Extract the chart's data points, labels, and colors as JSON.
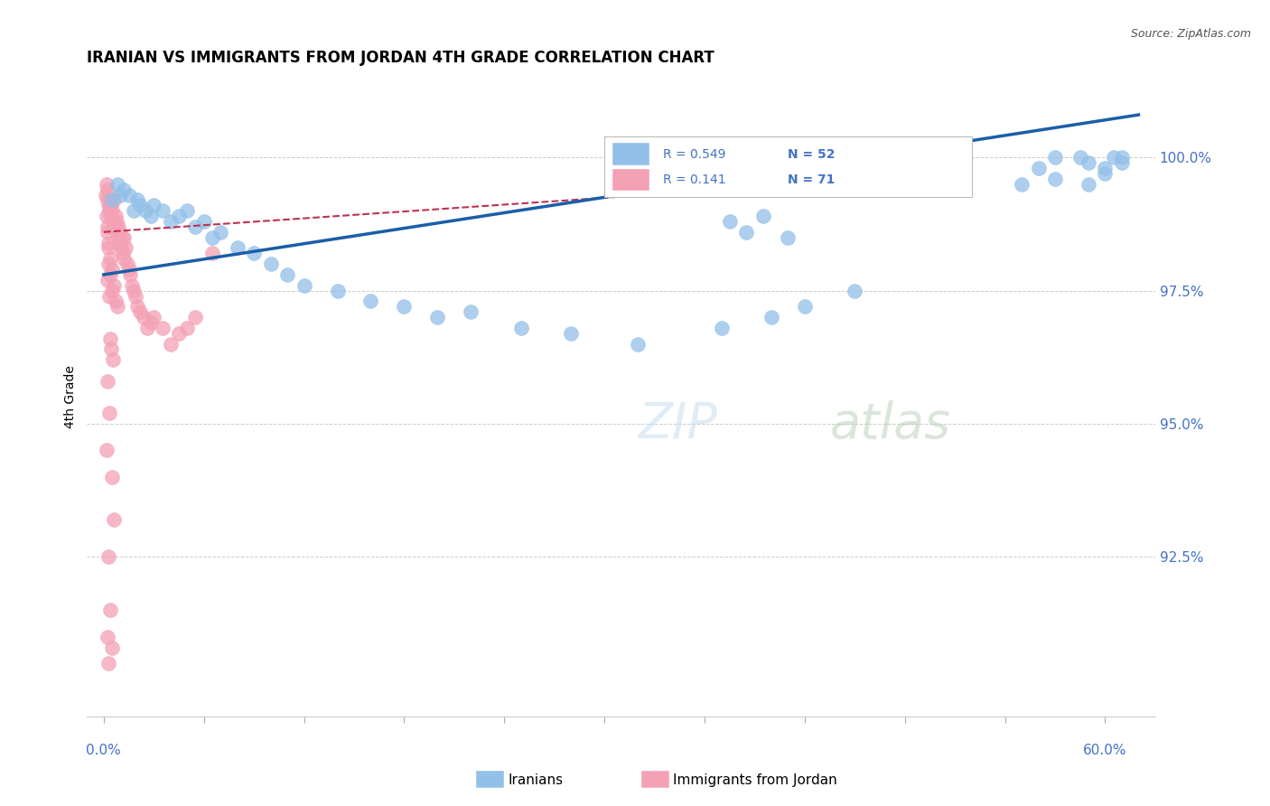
{
  "title": "IRANIAN VS IMMIGRANTS FROM JORDAN 4TH GRADE CORRELATION CHART",
  "source": "Source: ZipAtlas.com",
  "ylabel": "4th Grade",
  "ylim": [
    89.5,
    101.5
  ],
  "xlim": [
    -1.0,
    63.0
  ],
  "y_tick_vals": [
    92.5,
    95.0,
    97.5,
    100.0
  ],
  "y_tick_labels": [
    "92.5%",
    "95.0%",
    "97.5%",
    "100.0%"
  ],
  "legend_r_iranian": "0.549",
  "legend_n_iranian": "52",
  "legend_r_jordan": "0.141",
  "legend_n_jordan": "71",
  "color_iranian": "#92C0E8",
  "color_jordan": "#F4A0B5",
  "trendline_iranian_color": "#1A5EA8",
  "trendline_jordan_color": "#C03050",
  "iranian_x": [
    0.5,
    0.8,
    1.0,
    1.2,
    1.5,
    1.8,
    2.0,
    2.2,
    2.5,
    2.8,
    3.0,
    3.5,
    4.0,
    4.5,
    5.0,
    5.5,
    6.0,
    6.5,
    7.0,
    8.0,
    9.0,
    10.0,
    11.0,
    12.0,
    14.0,
    16.0,
    18.0,
    20.0,
    22.0,
    25.0,
    28.0,
    32.0,
    37.0,
    40.0,
    55.0,
    56.0,
    57.0,
    58.5,
    59.0,
    60.0,
    60.5,
    61.0,
    61.0,
    60.0,
    59.0,
    57.0,
    37.5,
    38.5,
    39.5,
    41.0,
    42.0,
    45.0
  ],
  "iranian_y": [
    99.2,
    99.5,
    99.3,
    99.4,
    99.3,
    99.0,
    99.2,
    99.1,
    99.0,
    98.9,
    99.1,
    99.0,
    98.8,
    98.9,
    99.0,
    98.7,
    98.8,
    98.5,
    98.6,
    98.3,
    98.2,
    98.0,
    97.8,
    97.6,
    97.5,
    97.3,
    97.2,
    97.0,
    97.1,
    96.8,
    96.7,
    96.5,
    96.8,
    97.0,
    99.5,
    99.8,
    100.0,
    100.0,
    99.9,
    99.8,
    100.0,
    100.0,
    99.9,
    99.7,
    99.5,
    99.6,
    98.8,
    98.6,
    98.9,
    98.5,
    97.2,
    97.5
  ],
  "jordan_x": [
    0.1,
    0.15,
    0.2,
    0.25,
    0.3,
    0.35,
    0.4,
    0.45,
    0.5,
    0.55,
    0.6,
    0.65,
    0.7,
    0.75,
    0.8,
    0.85,
    0.9,
    0.95,
    1.0,
    1.05,
    1.1,
    1.15,
    1.2,
    1.3,
    1.4,
    1.5,
    1.6,
    1.7,
    1.8,
    1.9,
    2.0,
    2.2,
    2.4,
    2.6,
    2.8,
    3.0,
    3.5,
    4.0,
    4.5,
    5.0,
    0.3,
    0.4,
    0.5,
    0.6,
    0.7,
    0.8,
    0.3,
    0.4,
    0.5,
    0.2,
    0.3,
    0.2,
    5.5,
    6.5,
    0.15,
    0.25,
    0.35,
    0.4,
    0.45,
    0.55,
    0.25,
    0.35,
    0.15,
    0.5,
    0.3,
    0.6,
    0.4,
    0.2,
    0.5,
    0.3,
    1.2
  ],
  "jordan_y": [
    99.3,
    99.5,
    99.2,
    99.4,
    99.1,
    99.0,
    98.9,
    99.1,
    99.0,
    98.8,
    99.2,
    98.7,
    98.9,
    98.8,
    98.6,
    98.7,
    98.5,
    98.6,
    98.4,
    98.3,
    98.5,
    98.2,
    98.1,
    98.3,
    98.0,
    97.9,
    97.8,
    97.6,
    97.5,
    97.4,
    97.2,
    97.1,
    97.0,
    96.8,
    96.9,
    97.0,
    96.8,
    96.5,
    96.7,
    96.8,
    98.0,
    97.8,
    97.5,
    97.6,
    97.3,
    97.2,
    98.3,
    98.1,
    97.9,
    98.6,
    98.4,
    97.7,
    97.0,
    98.2,
    98.9,
    98.7,
    97.4,
    96.6,
    96.4,
    96.2,
    95.8,
    95.2,
    94.5,
    94.0,
    92.5,
    93.2,
    91.5,
    91.0,
    90.8,
    90.5,
    98.5
  ],
  "jordan_trendline_x": [
    0.0,
    42.0
  ],
  "jordan_trendline_y": [
    98.6,
    99.5
  ],
  "iran_trendline_x": [
    0.0,
    62.0
  ],
  "iran_trendline_y": [
    97.8,
    100.8
  ]
}
